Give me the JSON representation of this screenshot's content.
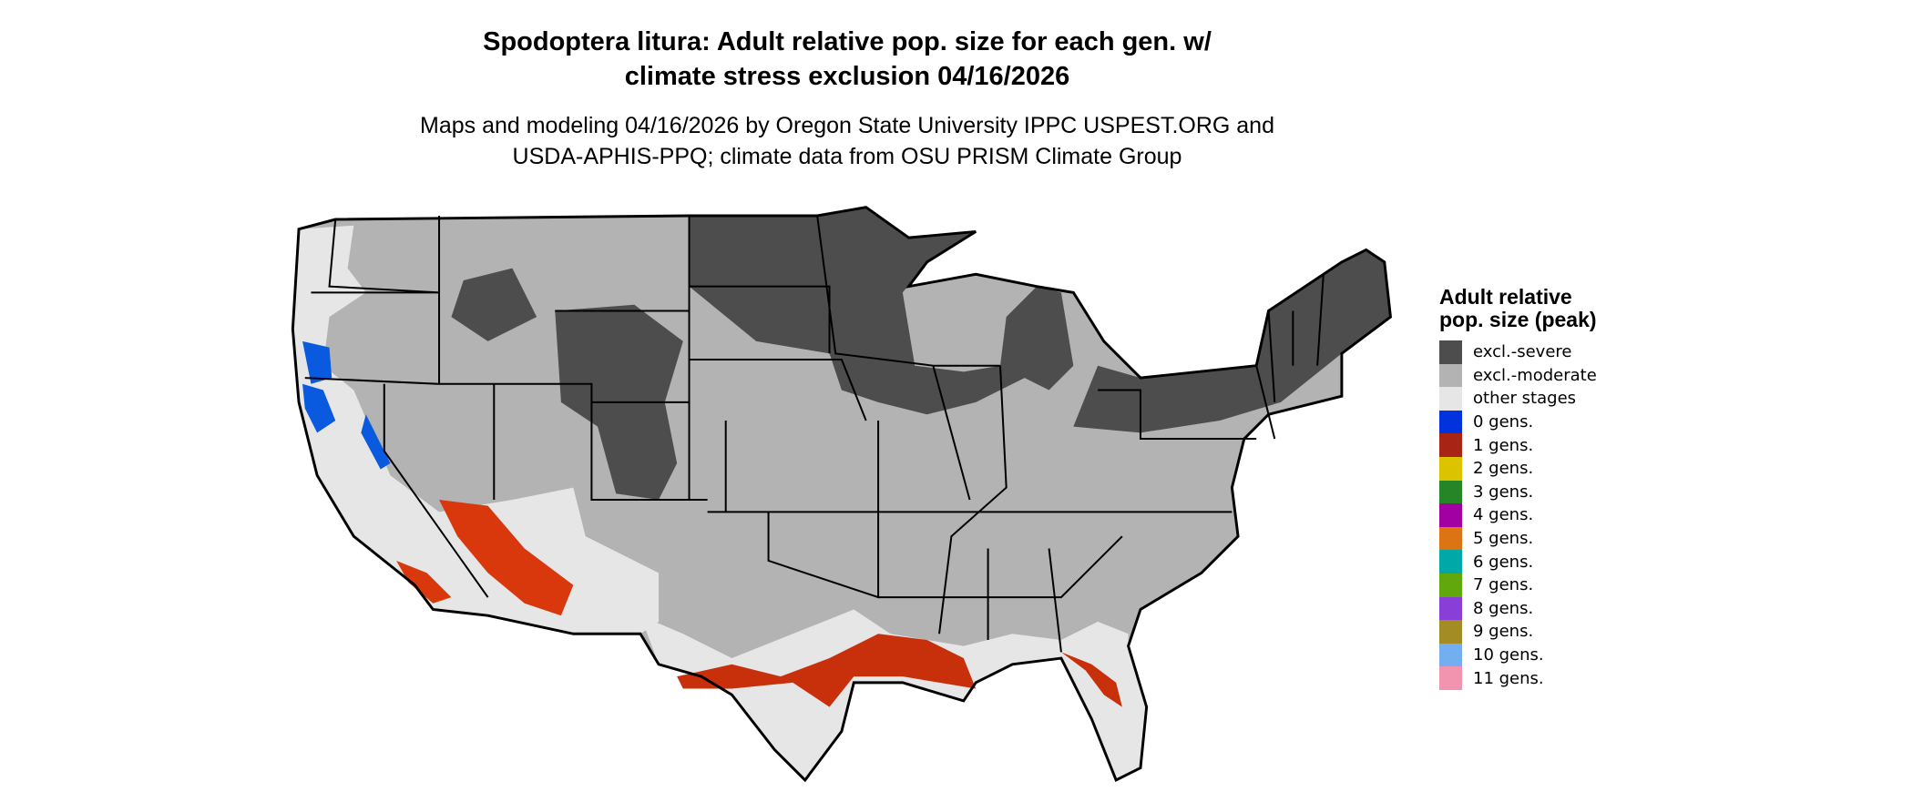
{
  "title_line1": "Spodoptera litura: Adult relative pop. size for each gen. w/",
  "title_line2": "climate stress exclusion 04/16/2026",
  "subtitle_line1": "Maps and modeling 04/16/2026 by Oregon State University IPPC USPEST.ORG and",
  "subtitle_line2": "USDA-APHIS-PPQ; climate data from OSU PRISM Climate Group",
  "legend": {
    "title": "Adult relative pop. size (peak)",
    "items": [
      {
        "label": "excl.-severe",
        "color": "#4d4d4d"
      },
      {
        "label": "excl.-moderate",
        "color": "#b3b3b3"
      },
      {
        "label": "other stages",
        "color": "#e6e6e6"
      },
      {
        "label": "0 gens.",
        "color": "#0033dd"
      },
      {
        "label": "1 gens.",
        "color": "#a82415"
      },
      {
        "label": "2 gens.",
        "color": "#dcc300"
      },
      {
        "label": "3 gens.",
        "color": "#268526"
      },
      {
        "label": "4 gens.",
        "color": "#a300a3"
      },
      {
        "label": "5 gens.",
        "color": "#dc7414"
      },
      {
        "label": "6 gens.",
        "color": "#00a8a8"
      },
      {
        "label": "7 gens.",
        "color": "#60a80c"
      },
      {
        "label": "8 gens.",
        "color": "#8a3ed8"
      },
      {
        "label": "9 gens.",
        "color": "#a38c24"
      },
      {
        "label": "10 gens.",
        "color": "#72aef0"
      },
      {
        "label": "11 gens.",
        "color": "#f294b0"
      }
    ]
  }
}
